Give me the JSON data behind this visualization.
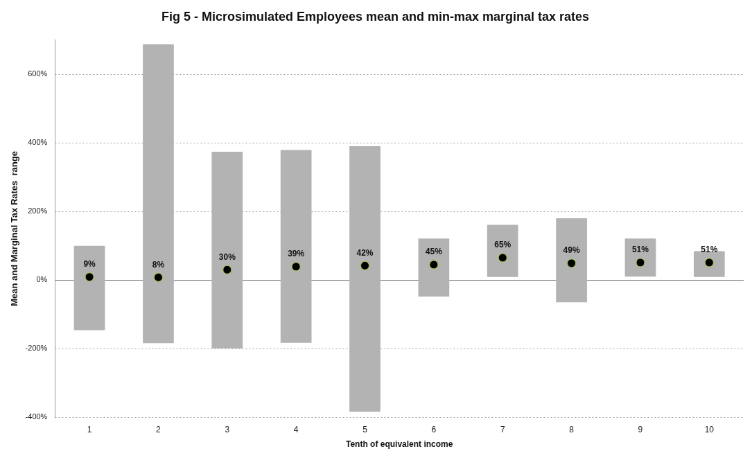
{
  "chart_data": {
    "type": "bar",
    "title": "Fig 5 - Microsimulated Employees mean and min-max marginal tax rates",
    "xlabel": "Tenth of equivalent income",
    "ylabel": "Mean and Marginal Tax Rates  range",
    "categories": [
      "1",
      "2",
      "3",
      "4",
      "5",
      "6",
      "7",
      "8",
      "9",
      "10"
    ],
    "series": [
      {
        "type": "bar",
        "color": "#b3b3b3",
        "base": [
          -146,
          -184,
          -199,
          -183,
          -384,
          -48,
          9,
          -65,
          10,
          9
        ],
        "values": [
          246,
          871,
          573,
          562,
          774,
          169,
          152,
          245,
          111,
          75
        ]
      },
      {
        "type": "scatter",
        "color": "#000000",
        "x": [
          "1",
          "2",
          "3",
          "4",
          "5",
          "6",
          "7",
          "8",
          "9",
          "10"
        ],
        "values": [
          9,
          8,
          30,
          39,
          42,
          45,
          65,
          49,
          51,
          51
        ],
        "value_labels": [
          "9%",
          "8%",
          "30%",
          "39%",
          "42%",
          "45%",
          "65%",
          "49%",
          "51%",
          "51%"
        ]
      }
    ],
    "ylim": [
      -400,
      700
    ],
    "yticks": [
      {
        "value": -400,
        "label": "-400%"
      },
      {
        "value": -200,
        "label": "-200%"
      },
      {
        "value": 0,
        "label": "0%"
      },
      {
        "value": 200,
        "label": "200%"
      },
      {
        "value": 400,
        "label": "400%"
      },
      {
        "value": 600,
        "label": "600%"
      }
    ],
    "grid": "y",
    "legend": false,
    "marker": "circle"
  }
}
